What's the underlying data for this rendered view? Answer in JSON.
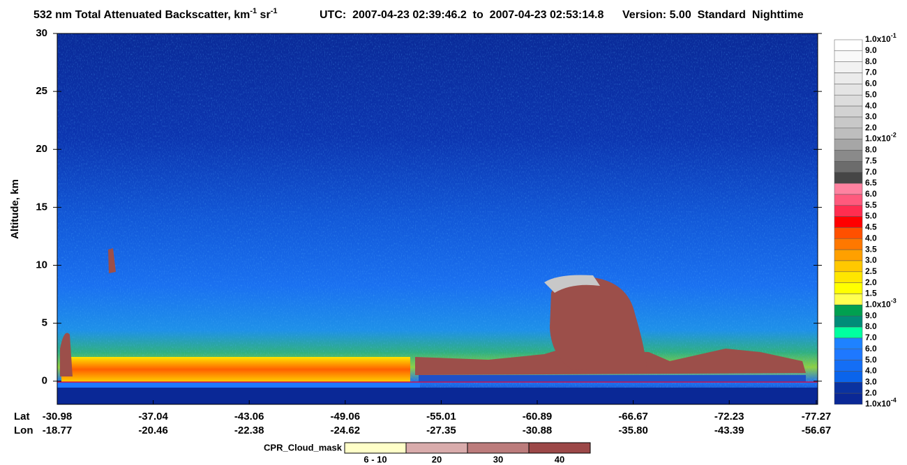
{
  "chart_data": {
    "type": "curtain",
    "title": {
      "main": "532 nm Total Attenuated Backscatter, km",
      "sup1": "-1",
      "mid": " sr",
      "sup2": "-1"
    },
    "utc": "UTC:  2007-04-23 02:39:46.2  to  2007-04-23 02:53:14.8",
    "version": "Version: 5.00  Standard  Nighttime",
    "ylabel": "Altitude, km",
    "ylim": [
      -2,
      30
    ],
    "yticks": [
      0,
      5,
      10,
      15,
      20,
      25,
      30
    ],
    "lat_label": "Lat",
    "lon_label": "Lon",
    "lat": [
      "-30.98",
      "-37.04",
      "-43.06",
      "-49.06",
      "-55.01",
      "-60.89",
      "-66.67",
      "-72.23",
      "-77.27"
    ],
    "lon": [
      "-18.77",
      "-20.46",
      "-22.38",
      "-24.62",
      "-27.35",
      "-30.88",
      "-35.80",
      "-43.39",
      "-56.67"
    ],
    "colorbar": {
      "labels": [
        {
          "text": "1.0x10",
          "sup": "-1"
        },
        "9.0",
        "8.0",
        "7.0",
        "6.0",
        "5.0",
        "4.0",
        "3.0",
        "2.0",
        {
          "text": "1.0x10",
          "sup": "-2"
        },
        "8.0",
        "7.5",
        "7.0",
        "6.5",
        "6.0",
        "5.5",
        "5.0",
        "4.5",
        "4.0",
        "3.5",
        "3.0",
        "2.5",
        "2.0",
        "1.5",
        {
          "text": "1.0x10",
          "sup": "-3"
        },
        "9.0",
        "8.0",
        "7.0",
        "6.0",
        "5.0",
        "4.0",
        "3.0",
        "2.0",
        {
          "text": "1.0x10",
          "sup": "-4"
        }
      ],
      "colors": [
        "#ffffff",
        "#f9f9f9",
        "#f2f2f2",
        "#ebebeb",
        "#e4e4e4",
        "#dcdcdc",
        "#d2d2d2",
        "#c8c8c8",
        "#bebebe",
        "#a6a6a6",
        "#8a8a8a",
        "#6c6c6c",
        "#464646",
        "#ff82a0",
        "#ff5a7d",
        "#ff2d50",
        "#ff0000",
        "#ff5000",
        "#ff7800",
        "#ffa000",
        "#ffc800",
        "#ffe600",
        "#ffff00",
        "#ffff50",
        "#00a050",
        "#008c78",
        "#00ffa0",
        "#1e82ff",
        "#1e78ff",
        "#146ef5",
        "#0a64eb",
        "#0a32a0",
        "#0a2896"
      ]
    },
    "cloud_mask": {
      "title": "CPR_Cloud_mask",
      "labels": [
        "6 - 10",
        "20",
        "30",
        "40"
      ],
      "colors": [
        "#ffffc8",
        "#d9acac",
        "#bc7c7c",
        "#9c4848"
      ]
    }
  }
}
